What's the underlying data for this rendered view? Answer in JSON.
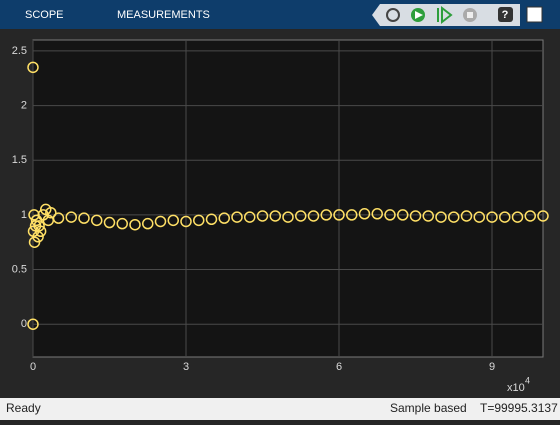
{
  "toolstrip": {
    "tabs": [
      "SCOPE",
      "MEASUREMENTS"
    ]
  },
  "status": {
    "left": "Ready",
    "mode": "Sample based",
    "time": "T=99995.3137"
  },
  "chart_data": {
    "type": "scatter",
    "x": [
      0,
      0,
      0.01,
      0.02,
      0.03,
      0.05,
      0.07,
      0.1,
      0.12,
      0.15,
      0.2,
      0.25,
      0.3,
      0.35,
      0.5,
      0.75,
      1,
      1.25,
      1.5,
      1.75,
      2,
      2.25,
      2.5,
      2.75,
      3,
      3.25,
      3.5,
      3.75,
      4,
      4.25,
      4.5,
      4.75,
      5,
      5.25,
      5.5,
      5.75,
      6,
      6.25,
      6.5,
      6.75,
      7,
      7.25,
      7.5,
      7.75,
      8,
      8.25,
      8.5,
      8.75,
      9,
      9.25,
      9.5,
      9.75,
      10
    ],
    "y": [
      2.35,
      0,
      0.85,
      1.0,
      0.75,
      0.9,
      0.95,
      0.8,
      0.9,
      0.85,
      1.0,
      1.05,
      0.95,
      1.02,
      0.97,
      0.98,
      0.97,
      0.95,
      0.93,
      0.92,
      0.91,
      0.92,
      0.94,
      0.95,
      0.94,
      0.95,
      0.96,
      0.97,
      0.98,
      0.98,
      0.99,
      0.99,
      0.98,
      0.99,
      0.99,
      1.0,
      1.0,
      1.0,
      1.01,
      1.01,
      1.0,
      1.0,
      0.99,
      0.99,
      0.98,
      0.98,
      0.99,
      0.98,
      0.98,
      0.98,
      0.98,
      0.99,
      0.99
    ],
    "color": "#ffe066",
    "xlim": [
      0,
      10
    ],
    "xticks": [
      0,
      3,
      6,
      9
    ],
    "x_exponent": {
      "base": "x10",
      "power": "4"
    },
    "ylim": [
      -0.3,
      2.6
    ],
    "yticks": [
      0,
      0.5,
      1,
      1.5,
      2,
      2.5
    ],
    "grid": true
  }
}
